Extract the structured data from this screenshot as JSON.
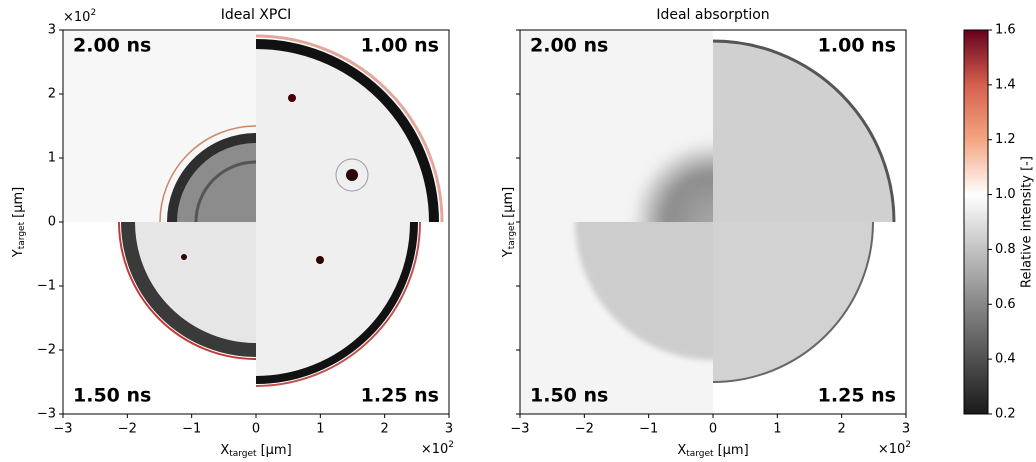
{
  "chart_data": [
    {
      "type": "image",
      "title": "Ideal XPCI",
      "xlim": [
        -3,
        3
      ],
      "ylim": [
        -3,
        3
      ],
      "xticks": [
        {
          "value": -3,
          "label": "−3"
        },
        {
          "value": -2,
          "label": "−2"
        },
        {
          "value": -1,
          "label": "−1"
        },
        0,
        1,
        2,
        3
      ],
      "yticks": [
        {
          "value": -3,
          "label": "−3"
        },
        {
          "value": -2,
          "label": "−2"
        },
        {
          "value": -1,
          "label": "−1"
        },
        0,
        1,
        2,
        3
      ],
      "show_yticklabels": true,
      "xlabel": {
        "main": "X",
        "sub": "target",
        "unit": "[μm]"
      },
      "ylabel": {
        "main": "Y",
        "sub": "target",
        "unit": "[μm]"
      },
      "x_offset": {
        "base": "×10",
        "exp": "2"
      },
      "y_offset": {
        "base": "×10",
        "exp": "2"
      },
      "annotations": [
        "2.00 ns",
        "1.00 ns",
        "1.50 ns",
        "1.25 ns"
      ]
    },
    {
      "type": "image",
      "title": "Ideal absorption",
      "xlim": [
        -3,
        3
      ],
      "ylim": [
        -3,
        3
      ],
      "xticks": [
        {
          "value": -3,
          "label": "−3"
        },
        {
          "value": -2,
          "label": "−2"
        },
        {
          "value": -1,
          "label": "−1"
        },
        0,
        1,
        2,
        3
      ],
      "yticks": [
        -3,
        -2,
        -1,
        0,
        1,
        2,
        3
      ],
      "show_yticklabels": false,
      "xlabel": {
        "main": "X",
        "sub": "target",
        "unit": "[μm]"
      },
      "ylabel": {
        "main": "Y",
        "sub": "target",
        "unit": "[μm]"
      },
      "x_offset": {
        "base": "×10",
        "exp": "2"
      },
      "annotations": [
        "2.00 ns",
        "1.00 ns",
        "1.50 ns",
        "1.25 ns"
      ]
    },
    {
      "type": "colorbar",
      "label": "Relative intensity [-]",
      "ylim": [
        0.2,
        1.6
      ],
      "yticks": [
        0.2,
        0.4,
        0.6,
        0.8,
        {
          "value": 1,
          "label": "1.0"
        },
        1.2,
        1.4,
        1.6
      ]
    }
  ]
}
